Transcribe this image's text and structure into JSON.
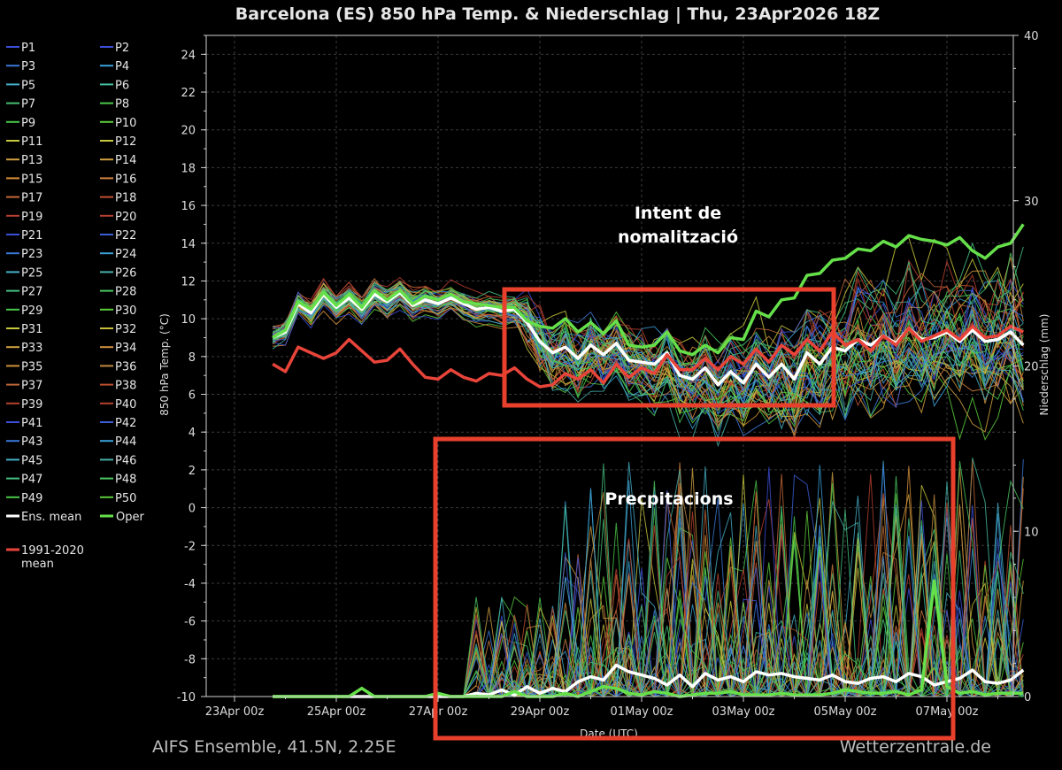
{
  "chart_data": {
    "type": "line",
    "title": "Barcelona  (ES)  850 hPa Temp. & Niederschlag | Thu, 23Apr2026 18Z",
    "ylabel": "850 hPa Temp. (°C)",
    "y2label": "Niederschlag (mm)",
    "xlabel": "Date (UTC)",
    "ylim": [
      -10,
      25
    ],
    "y2lim": [
      0,
      40
    ],
    "xlim": [
      "23Apr 00z",
      "08May 12z"
    ],
    "grid": true,
    "legend_position": "left",
    "x_tick_labels": [
      "23Apr 00z",
      "25Apr 00z",
      "27Apr 00z",
      "29Apr 00z",
      "01May 00z",
      "03May 00z",
      "05May 00z",
      "07May 00z"
    ],
    "y_tick_labels": [
      "24",
      "22",
      "20",
      "18",
      "16",
      "14",
      "12",
      "10",
      "8",
      "6",
      "4",
      "2",
      "0",
      "-2",
      "-4",
      "-6",
      "-8",
      "-10"
    ],
    "y2_tick_labels": [
      "40",
      "30",
      "20",
      "10",
      "0"
    ],
    "x_time_steps": [
      "23Apr 18z",
      "24Apr 00z",
      "24Apr 06z",
      "24Apr 12z",
      "24Apr 18z",
      "25Apr 00z",
      "25Apr 06z",
      "25Apr 12z",
      "25Apr 18z",
      "26Apr 00z",
      "26Apr 06z",
      "26Apr 12z",
      "26Apr 18z",
      "27Apr 00z",
      "27Apr 06z",
      "27Apr 12z",
      "27Apr 18z",
      "28Apr 00z",
      "28Apr 06z",
      "28Apr 12z",
      "28Apr 18z",
      "29Apr 00z",
      "29Apr 06z",
      "29Apr 12z",
      "29Apr 18z",
      "30Apr 00z",
      "30Apr 06z",
      "30Apr 12z",
      "30Apr 18z",
      "01May 00z",
      "01May 06z",
      "01May 12z",
      "01May 18z",
      "02May 00z",
      "02May 06z",
      "02May 12z",
      "02May 18z",
      "03May 00z",
      "03May 06z",
      "03May 12z",
      "03May 18z",
      "04May 00z",
      "04May 06z",
      "04May 12z",
      "04May 18z",
      "05May 00z",
      "05May 06z",
      "05May 12z",
      "05May 18z",
      "06May 00z",
      "06May 06z",
      "06May 12z",
      "06May 18z",
      "07May 00z",
      "07May 06z",
      "07May 12z",
      "07May 18z",
      "08May 00z",
      "08May 06z",
      "08May 12z"
    ],
    "series": [
      {
        "name": "Ens. mean",
        "color": "#ffffff",
        "axis": "temp",
        "values": [
          9.0,
          9.3,
          10.8,
          10.3,
          11.3,
          10.6,
          11.1,
          10.5,
          11.3,
          10.9,
          11.4,
          10.7,
          11.0,
          10.8,
          11.1,
          10.8,
          10.5,
          10.6,
          10.4,
          10.5,
          9.8,
          8.8,
          8.2,
          8.5,
          7.9,
          8.6,
          8.1,
          8.7,
          7.8,
          7.7,
          7.6,
          8.2,
          7.0,
          6.8,
          7.4,
          6.5,
          7.2,
          6.6,
          7.6,
          6.9,
          7.6,
          6.8,
          8.2,
          7.6,
          8.5,
          8.3,
          8.9,
          8.6,
          9.1,
          8.7,
          9.5,
          8.9,
          9.0,
          9.3,
          8.8,
          9.4,
          8.8,
          8.9,
          9.3,
          8.6
        ]
      },
      {
        "name": "Oper",
        "color": "#66e04a",
        "axis": "temp",
        "values": [
          9.0,
          9.4,
          10.9,
          10.5,
          11.4,
          10.7,
          11.3,
          10.6,
          11.5,
          11.0,
          11.5,
          10.8,
          11.2,
          11.0,
          11.3,
          10.9,
          10.8,
          10.7,
          10.6,
          10.6,
          9.9,
          9.6,
          9.5,
          10.0,
          9.3,
          9.8,
          9.2,
          9.9,
          8.6,
          8.5,
          8.6,
          9.3,
          8.3,
          8.1,
          8.6,
          8.2,
          9.0,
          8.9,
          10.4,
          10.1,
          11.0,
          11.1,
          12.3,
          12.4,
          13.1,
          13.2,
          13.7,
          13.6,
          14.1,
          13.8,
          14.4,
          14.2,
          14.1,
          13.9,
          14.3,
          13.6,
          13.2,
          13.8,
          14.0,
          15.0
        ]
      },
      {
        "name": "1991-2020 mean",
        "color": "#e8443a",
        "axis": "temp",
        "values": [
          7.6,
          7.2,
          8.5,
          8.2,
          7.9,
          8.2,
          8.9,
          8.3,
          7.7,
          7.8,
          8.4,
          7.6,
          6.9,
          6.8,
          7.3,
          6.9,
          6.7,
          7.1,
          7.0,
          7.4,
          6.8,
          6.4,
          6.5,
          7.1,
          6.8,
          7.3,
          6.6,
          7.6,
          6.9,
          7.4,
          7.1,
          8.1,
          7.3,
          7.3,
          7.9,
          7.3,
          8.0,
          7.6,
          8.4,
          7.7,
          8.6,
          8.1,
          8.9,
          8.3,
          9.3,
          8.6,
          8.9,
          8.3,
          9.1,
          8.6,
          9.5,
          8.8,
          9.1,
          9.4,
          8.9,
          9.6,
          9.0,
          9.1,
          9.6,
          9.3
        ]
      },
      {
        "name": "Ens. mean precip",
        "color": "#ffffff",
        "axis": "precip",
        "values": [
          0,
          0,
          0,
          0,
          0,
          0,
          0,
          0,
          0,
          0,
          0,
          0,
          0,
          0,
          0,
          0,
          0.2,
          0.1,
          0.4,
          0.1,
          0.6,
          0.2,
          0.5,
          0.3,
          0.9,
          1.2,
          1.0,
          1.9,
          1.5,
          1.3,
          1.1,
          0.7,
          1.3,
          0.6,
          1.4,
          1.0,
          1.2,
          0.9,
          1.5,
          1.3,
          1.4,
          1.2,
          1.1,
          1.0,
          1.3,
          0.9,
          0.8,
          1.1,
          1.2,
          0.9,
          1.4,
          1.2,
          0.7,
          0.9,
          1.1,
          1.6,
          0.9,
          0.8,
          1.0,
          1.6
        ]
      },
      {
        "name": "Oper precip",
        "color": "#66e04a",
        "axis": "precip",
        "values": [
          0,
          0,
          0,
          0,
          0,
          0,
          0,
          0.5,
          0,
          0,
          0,
          0,
          0,
          0.2,
          0,
          0,
          0,
          0,
          0,
          0.3,
          0,
          0,
          0,
          0.2,
          0,
          0.3,
          0.6,
          0.5,
          0.2,
          0.1,
          0.3,
          0.2,
          0,
          0.1,
          0.2,
          0.2,
          0.3,
          0.1,
          0.1,
          0.1,
          0.2,
          0.1,
          0.1,
          0.1,
          0.2,
          0.4,
          0.3,
          0.2,
          0.2,
          0.3,
          0.1,
          0.4,
          7.0,
          0.6,
          0.2,
          0.3,
          0.1,
          0.2,
          0.2,
          0.2
        ]
      }
    ],
    "ensemble_members": {
      "count": 50,
      "names": [
        "P1",
        "P2",
        "P3",
        "P4",
        "P5",
        "P6",
        "P7",
        "P8",
        "P9",
        "P10",
        "P11",
        "P12",
        "P13",
        "P14",
        "P15",
        "P16",
        "P17",
        "P18",
        "P19",
        "P20",
        "P21",
        "P22",
        "P23",
        "P24",
        "P25",
        "P26",
        "P27",
        "P28",
        "P29",
        "P30",
        "P31",
        "P32",
        "P33",
        "P34",
        "P35",
        "P36",
        "P37",
        "P38",
        "P39",
        "P40",
        "P41",
        "P42",
        "P43",
        "P44",
        "P45",
        "P46",
        "P47",
        "P48",
        "P49",
        "P50"
      ],
      "colors": [
        "#3c4fd8",
        "#3c4fd8",
        "#3a78d8",
        "#3aa0d8",
        "#45b0c8",
        "#45c0a0",
        "#44c070",
        "#4ac84a",
        "#4ac84a",
        "#5ccc3c",
        "#c8c83c",
        "#c8c83c",
        "#d0a040",
        "#d0a040",
        "#d89038",
        "#d08040",
        "#c86838",
        "#c05030",
        "#b84030",
        "#b84030",
        "#3c4fd8",
        "#3a60d8",
        "#3a78d8",
        "#3aa0d8",
        "#45b0c8",
        "#45b0a8",
        "#44c080",
        "#4ac860",
        "#4ac84a",
        "#5ccc3c",
        "#c8c83c",
        "#c8c03c",
        "#d0a040",
        "#d09040",
        "#d09038",
        "#c08840",
        "#c06838",
        "#c05030",
        "#b84030",
        "#b84030",
        "#3c4fd8",
        "#3a60d8",
        "#3a78d8",
        "#3aa0d8",
        "#45b0c8",
        "#45b0a8",
        "#44c080",
        "#4ac860",
        "#4ac84a",
        "#5ccc3c"
      ]
    },
    "annotations": [
      {
        "text_lines": [
          "Intent de",
          "nomalització"
        ],
        "box": "none"
      },
      {
        "text_lines": [
          "Precpitacions"
        ],
        "box": "none"
      },
      {
        "label": "highlight box temperature",
        "color": "#e8402c"
      },
      {
        "label": "highlight box precipitation",
        "color": "#e8402c"
      }
    ]
  },
  "legend": {
    "ens_mean_label": "Ens. mean",
    "oper_label": "Oper",
    "climate_label_line1": "1991-2020",
    "climate_label_line2": "mean"
  },
  "footer": {
    "left": "AIFS Ensemble, 41.5N, 2.25E",
    "right": "Wetterzentrale.de"
  },
  "colors": {
    "background": "#000000",
    "grid": "#3a3a3a",
    "axis": "#d0d0d0",
    "highlight": "#e8402c"
  }
}
